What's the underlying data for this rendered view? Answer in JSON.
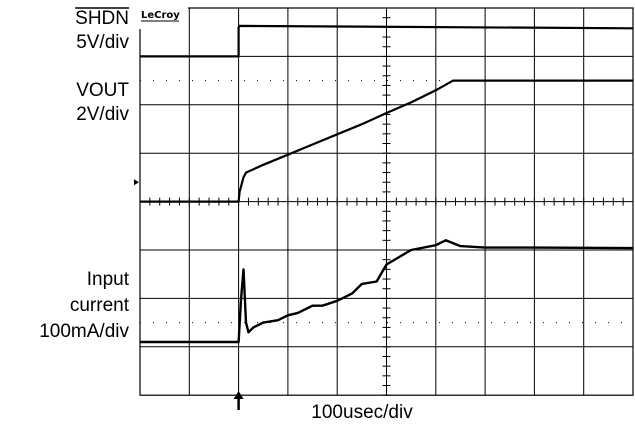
{
  "chart_data": {
    "type": "line",
    "grid": true,
    "xlabel": "100usec/div",
    "xlim_div": [
      0,
      10
    ],
    "brand": "LeCroy",
    "channels": [
      {
        "label_lines": [
          "SHDN",
          "5V/div"
        ],
        "overline_first_line": true,
        "ylim_div": [
          0,
          8
        ],
        "x": [
          0,
          2.0,
          2.0,
          2.02,
          10
        ],
        "y": [
          7.0,
          7.0,
          7.6,
          7.63,
          7.58
        ]
      },
      {
        "label_lines": [
          "VOUT",
          "2V/div"
        ],
        "ylim_div": [
          0,
          8
        ],
        "x": [
          0,
          2.0,
          2.02,
          2.1,
          2.15,
          2.5,
          3.0,
          3.5,
          4.0,
          4.5,
          5.0,
          5.5,
          6.0,
          6.35,
          7.0,
          8.0,
          9.0,
          10
        ],
        "y": [
          4.0,
          4.0,
          4.2,
          4.5,
          4.6,
          4.76,
          4.97,
          5.18,
          5.39,
          5.6,
          5.83,
          6.05,
          6.3,
          6.5,
          6.5,
          6.5,
          6.5,
          6.5
        ],
        "ground_marker_div": 4.4
      },
      {
        "label_lines": [
          "Input",
          "current",
          "100mA/div"
        ],
        "ylim_div": [
          0,
          8
        ],
        "x": [
          0,
          2.0,
          2.05,
          2.1,
          2.15,
          2.2,
          2.3,
          2.5,
          2.8,
          3.0,
          3.2,
          3.5,
          3.7,
          4.0,
          4.3,
          4.5,
          4.8,
          5.0,
          5.5,
          6.0,
          6.2,
          6.5,
          7.0,
          8.0,
          10
        ],
        "y": [
          1.1,
          1.1,
          2.0,
          2.6,
          1.5,
          1.3,
          1.4,
          1.5,
          1.55,
          1.65,
          1.7,
          1.85,
          1.85,
          1.95,
          2.1,
          2.3,
          2.35,
          2.7,
          3.0,
          3.1,
          3.2,
          3.08,
          3.05,
          3.05,
          3.04
        ]
      }
    ],
    "trigger_marker_div": 2.0
  }
}
